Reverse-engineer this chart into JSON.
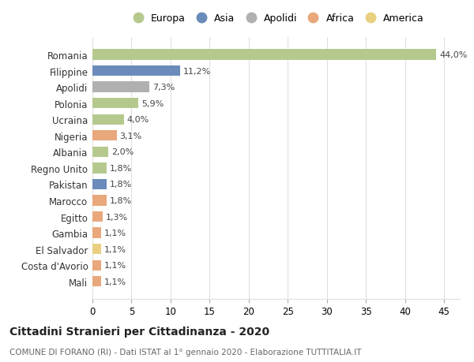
{
  "categories": [
    "Romania",
    "Filippine",
    "Apolidi",
    "Polonia",
    "Ucraina",
    "Nigeria",
    "Albania",
    "Regno Unito",
    "Pakistan",
    "Marocco",
    "Egitto",
    "Gambia",
    "El Salvador",
    "Costa d'Avorio",
    "Mali"
  ],
  "values": [
    44.0,
    11.2,
    7.3,
    5.9,
    4.0,
    3.1,
    2.0,
    1.8,
    1.8,
    1.8,
    1.3,
    1.1,
    1.1,
    1.1,
    1.1
  ],
  "labels": [
    "44,0%",
    "11,2%",
    "7,3%",
    "5,9%",
    "4,0%",
    "3,1%",
    "2,0%",
    "1,8%",
    "1,8%",
    "1,8%",
    "1,3%",
    "1,1%",
    "1,1%",
    "1,1%",
    "1,1%"
  ],
  "colors": [
    "#b5c98e",
    "#6b8cba",
    "#b0b0b0",
    "#b5c98e",
    "#b5c98e",
    "#e8a87c",
    "#b5c98e",
    "#b5c98e",
    "#6b8cba",
    "#e8a87c",
    "#e8a87c",
    "#e8a87c",
    "#e8d080",
    "#e8a87c",
    "#e8a87c"
  ],
  "legend": [
    {
      "label": "Europa",
      "color": "#b5c98e"
    },
    {
      "label": "Asia",
      "color": "#6b8cba"
    },
    {
      "label": "Apolidi",
      "color": "#b0b0b0"
    },
    {
      "label": "Africa",
      "color": "#e8a87c"
    },
    {
      "label": "America",
      "color": "#e8d080"
    }
  ],
  "title": "Cittadini Stranieri per Cittadinanza - 2020",
  "subtitle": "COMUNE DI FORANO (RI) - Dati ISTAT al 1° gennaio 2020 - Elaborazione TUTTITALIA.IT",
  "xlim": [
    0,
    47
  ],
  "xticks": [
    0,
    5,
    10,
    15,
    20,
    25,
    30,
    35,
    40,
    45
  ],
  "background_color": "#ffffff",
  "grid_color": "#e0e0e0"
}
